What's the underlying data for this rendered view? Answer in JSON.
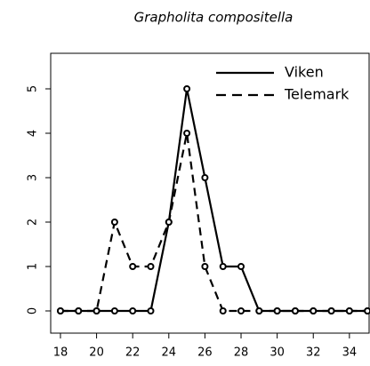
{
  "chart_data": {
    "type": "line",
    "title": "Grapholita compositella",
    "x": [
      18,
      19,
      20,
      21,
      22,
      23,
      24,
      25,
      26,
      27,
      28,
      29,
      30,
      31,
      32,
      33,
      34,
      35
    ],
    "series": [
      {
        "name": "Viken",
        "color": "#000000",
        "dash": false,
        "values": [
          0,
          0,
          0,
          0,
          0,
          0,
          2,
          5,
          3,
          1,
          1,
          0,
          0,
          0,
          0,
          0,
          0,
          0
        ]
      },
      {
        "name": "Telemark",
        "color": "#000000",
        "dash": true,
        "values": [
          0,
          0,
          0,
          2,
          1,
          1,
          2,
          4,
          1,
          0,
          0,
          0,
          0,
          0,
          0,
          0,
          0,
          0
        ]
      }
    ],
    "xlim": [
      17.46,
      35.14
    ],
    "xticks": [
      18,
      20,
      22,
      24,
      26,
      28,
      30,
      32,
      34
    ],
    "ylim": [
      -0.5,
      5.8
    ],
    "yticks": [
      0,
      1,
      2,
      3,
      4,
      5
    ],
    "legend": "top-right"
  }
}
